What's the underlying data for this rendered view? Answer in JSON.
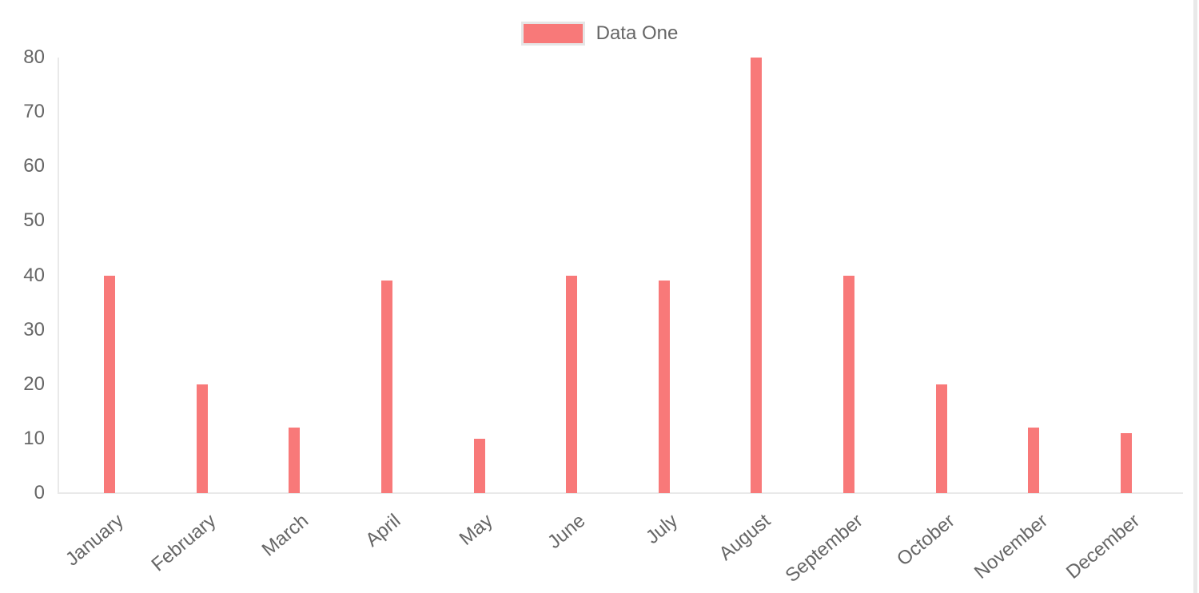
{
  "legend": {
    "label": "Data One",
    "position": "top"
  },
  "chart_data": {
    "type": "bar",
    "title": "",
    "categories": [
      "January",
      "February",
      "March",
      "April",
      "May",
      "June",
      "July",
      "August",
      "September",
      "October",
      "November",
      "December"
    ],
    "series": [
      {
        "name": "Data One",
        "values": [
          40,
          20,
          12,
          39,
          10,
          40,
          39,
          80,
          40,
          20,
          12,
          11
        ],
        "color": "#f87979"
      }
    ],
    "xlabel": "",
    "ylabel": "",
    "ylim": [
      0,
      80
    ],
    "yticks": [
      0,
      10,
      20,
      30,
      40,
      50,
      60,
      70,
      80
    ],
    "grid": false,
    "legend_position": "top",
    "colors": {
      "bar": "#f87979",
      "axis_line": "#e9e9e9",
      "tick_text": "#666666",
      "legend_swatch_border": "#e6e6e6",
      "background": "#ffffff"
    }
  }
}
